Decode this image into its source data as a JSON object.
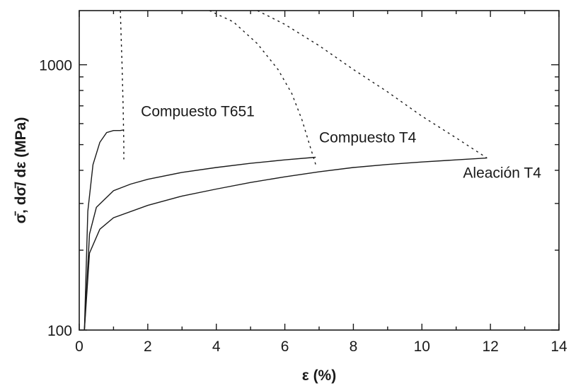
{
  "chart_data": {
    "type": "line",
    "xlabel": "ε (%)",
    "ylabel": "σ̄, dσ̄/ dε  (MPa)",
    "xlim": [
      0,
      14
    ],
    "ylim": [
      100,
      1600
    ],
    "yscale": "log",
    "grid": false,
    "x_ticks": [
      0,
      2,
      4,
      6,
      8,
      10,
      12,
      14
    ],
    "x_tick_labels": [
      "0",
      "2",
      "4",
      "6",
      "8",
      "10",
      "12",
      "14"
    ],
    "y_ticks": [
      100,
      1000
    ],
    "y_tick_labels": [
      "100",
      "1000"
    ],
    "series": [
      {
        "name": "Compuesto T651",
        "style": "solid",
        "x": [
          0.15,
          0.25,
          0.4,
          0.6,
          0.8,
          1.0,
          1.2,
          1.3
        ],
        "y": [
          100,
          280,
          420,
          510,
          555,
          565,
          565,
          568
        ]
      },
      {
        "style": "dotted",
        "x": [
          1.2,
          1.22,
          1.25,
          1.28,
          1.3,
          1.3
        ],
        "y": [
          1600,
          1300,
          1000,
          700,
          500,
          440
        ]
      },
      {
        "name": "Compuesto T4",
        "style": "solid",
        "x": [
          0.15,
          0.3,
          0.5,
          1.0,
          1.5,
          2.0,
          3.0,
          4.0,
          5.0,
          6.0,
          6.9
        ],
        "y": [
          100,
          230,
          290,
          335,
          355,
          370,
          393,
          410,
          425,
          438,
          448
        ]
      },
      {
        "style": "dotted",
        "x": [
          3.8,
          4.5,
          5.2,
          5.8,
          6.2,
          6.5,
          6.7,
          6.9
        ],
        "y": [
          1600,
          1450,
          1200,
          960,
          780,
          620,
          510,
          420
        ]
      },
      {
        "name": "Aleación T4",
        "style": "solid",
        "x": [
          0.15,
          0.3,
          0.6,
          1.0,
          2.0,
          3.0,
          4.0,
          5.0,
          6.0,
          7.0,
          8.0,
          9.0,
          10.0,
          11.0,
          11.9
        ],
        "y": [
          100,
          195,
          240,
          265,
          295,
          320,
          340,
          360,
          378,
          395,
          410,
          421,
          430,
          438,
          445
        ]
      },
      {
        "style": "dotted",
        "x": [
          5.2,
          6.0,
          7.0,
          8.0,
          9.0,
          10.0,
          11.0,
          11.9
        ],
        "y": [
          1600,
          1420,
          1180,
          960,
          790,
          640,
          530,
          445
        ]
      }
    ],
    "annotations": [
      {
        "text": "Compuesto T651",
        "x": 1.8,
        "y": 640
      },
      {
        "text": "Compuesto T4",
        "x": 7.0,
        "y": 510
      },
      {
        "text": "Aleación T4",
        "x": 11.2,
        "y": 375
      }
    ]
  }
}
